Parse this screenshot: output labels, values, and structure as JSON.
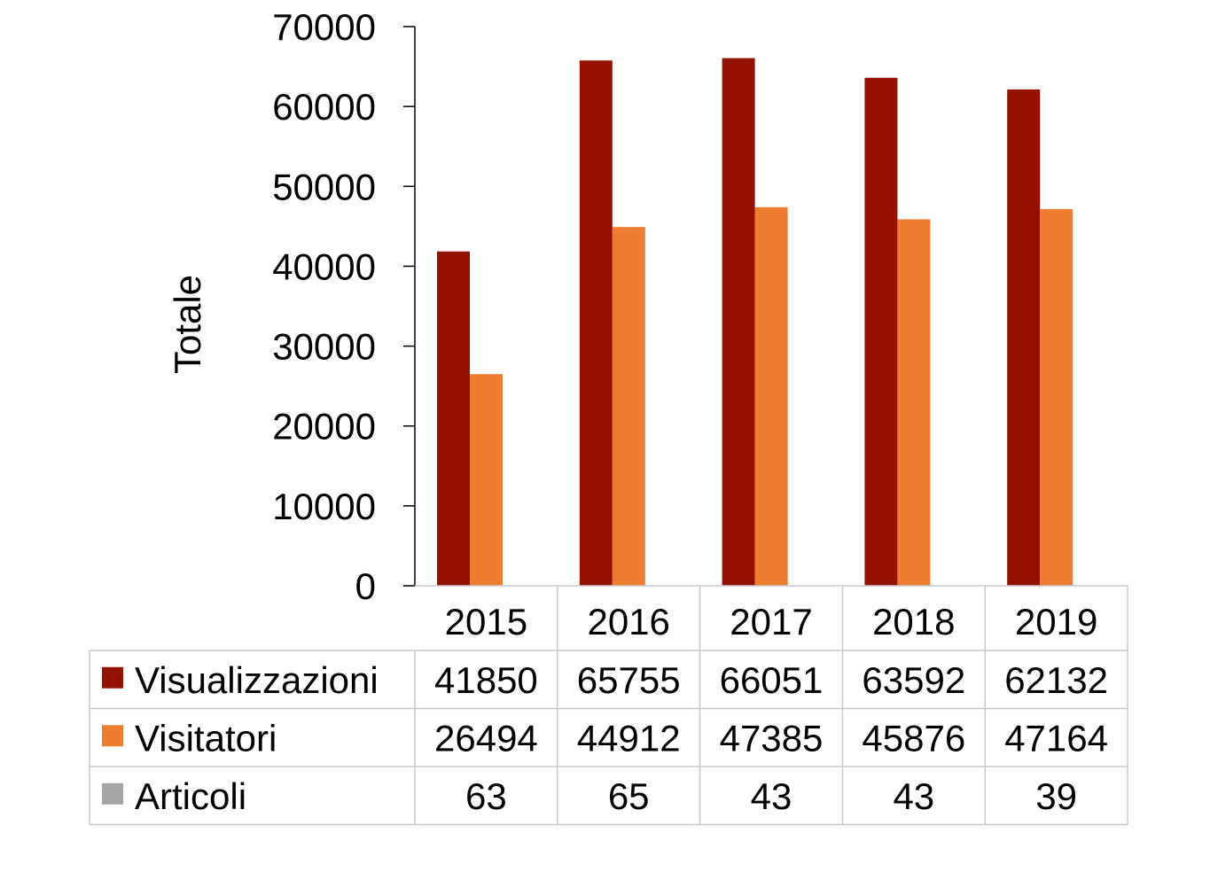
{
  "chart_data": {
    "type": "bar",
    "title": "",
    "xlabel": "",
    "ylabel": "Totale",
    "ylim": [
      0,
      70000
    ],
    "yticks": [
      "0",
      "10000",
      "20000",
      "30000",
      "40000",
      "50000",
      "60000",
      "70000"
    ],
    "categories": [
      "2015",
      "2016",
      "2017",
      "2018",
      "2019"
    ],
    "series": [
      {
        "name": "Visualizzazioni",
        "color": "#941100",
        "values": [
          41850,
          65755,
          66051,
          63592,
          62132
        ],
        "labels": [
          "41850",
          "65755",
          "66051",
          "63592",
          "62132"
        ]
      },
      {
        "name": "Visitatori",
        "color": "#ed7d31",
        "values": [
          26494,
          44912,
          47385,
          45876,
          47164
        ],
        "labels": [
          "26494",
          "44912",
          "47385",
          "45876",
          "47164"
        ]
      },
      {
        "name": "Articoli",
        "color": "#a5a5a5",
        "values": [
          63,
          65,
          43,
          43,
          39
        ],
        "labels": [
          "63",
          "65",
          "43",
          "43",
          "39"
        ]
      }
    ],
    "grid": false,
    "legend": "data-table"
  }
}
